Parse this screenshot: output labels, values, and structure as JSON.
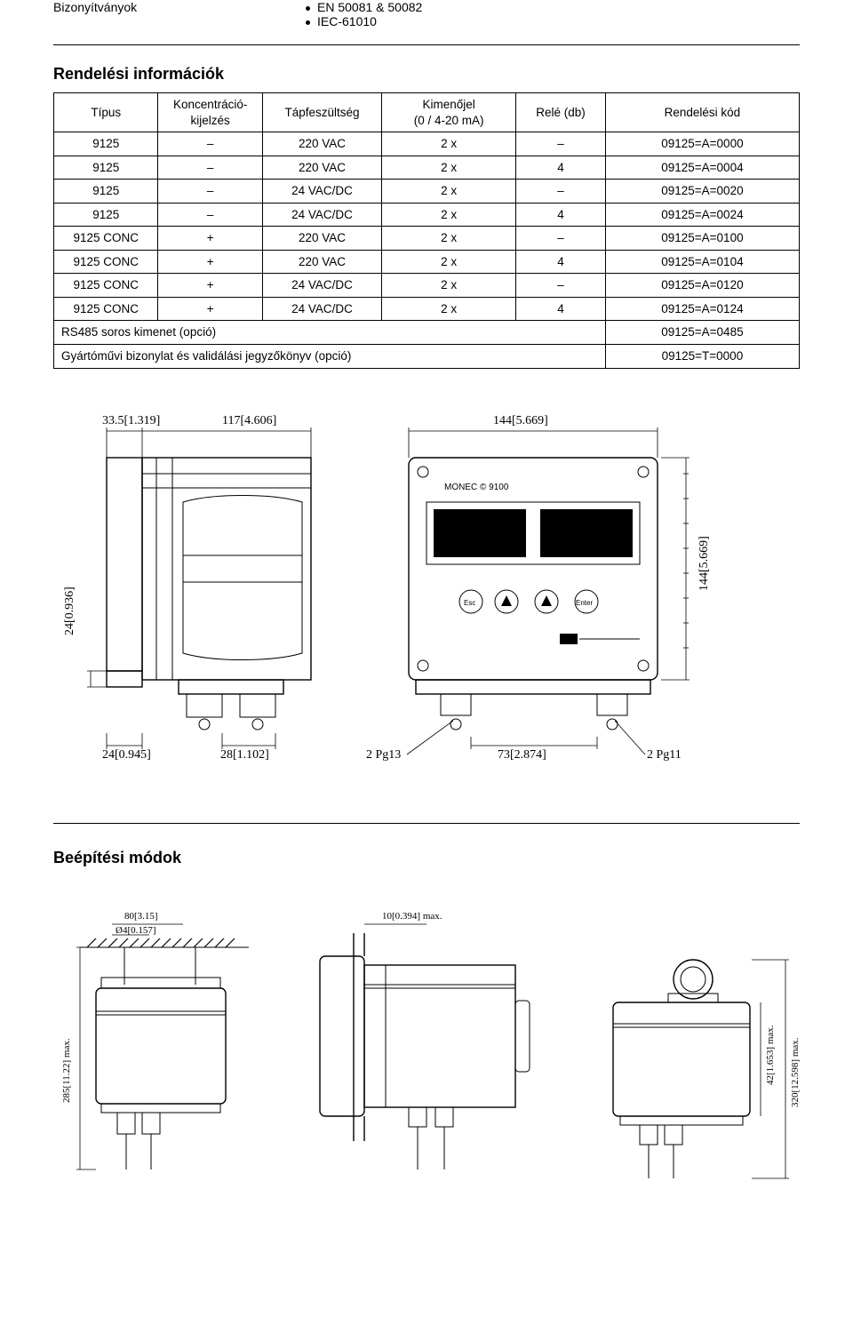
{
  "top": {
    "left_label": "Bizonyítványok",
    "bullets": [
      "EN 50081 & 50082",
      "IEC-61010"
    ]
  },
  "section1_title": "Rendelési információk",
  "table": {
    "headers": {
      "type": "Típus",
      "conc": "Koncentráció-kijelzés",
      "power": "Tápfeszültség",
      "output_line1": "Kimenőjel",
      "output_line2": "(0 / 4-20 mA)",
      "relay": "Relé (db)",
      "code": "Rendelési kód"
    },
    "rows": [
      {
        "type": "9125",
        "conc": "–",
        "power": "220 VAC",
        "out": "2 x",
        "relay": "–",
        "code": "09125=A=0000"
      },
      {
        "type": "9125",
        "conc": "–",
        "power": "220 VAC",
        "out": "2 x",
        "relay": "4",
        "code": "09125=A=0004"
      },
      {
        "type": "9125",
        "conc": "–",
        "power": "24 VAC/DC",
        "out": "2 x",
        "relay": "–",
        "code": "09125=A=0020"
      },
      {
        "type": "9125",
        "conc": "–",
        "power": "24 VAC/DC",
        "out": "2 x",
        "relay": "4",
        "code": "09125=A=0024"
      },
      {
        "type": "9125 CONC",
        "conc": "+",
        "power": "220 VAC",
        "out": "2 x",
        "relay": "–",
        "code": "09125=A=0100"
      },
      {
        "type": "9125 CONC",
        "conc": "+",
        "power": "220 VAC",
        "out": "2 x",
        "relay": "4",
        "code": "09125=A=0104"
      },
      {
        "type": "9125 CONC",
        "conc": "+",
        "power": "24 VAC/DC",
        "out": "2 x",
        "relay": "–",
        "code": "09125=A=0120"
      },
      {
        "type": "9125 CONC",
        "conc": "+",
        "power": "24 VAC/DC",
        "out": "2 x",
        "relay": "4",
        "code": "09125=A=0124"
      }
    ],
    "foot1_label": "RS485 soros kimenet (opció)",
    "foot1_code": "09125=A=0485",
    "foot2_label": "Gyártóművi bizonylat és validálási jegyzőkönyv (opció)",
    "foot2_code": "09125=T=0000"
  },
  "dim_main": {
    "d33": "33.5[1.319]",
    "d117": "117[4.606]",
    "d144": "144[5.669]",
    "d144v": "144[5.669]",
    "d24v": "24[0.936]",
    "d24b": "24[0.945]",
    "d28b": "28[1.102]",
    "pg13": "2 Pg13",
    "d73b": "73[2.874]",
    "pg11": "2 Pg11",
    "device_label": "MONEC © 9100",
    "btn_esc": "Esc",
    "btn_enter": "Enter"
  },
  "section2_title": "Beépítési módok",
  "mount": {
    "m80": "80[3.15]",
    "m04": "Ø4[0.157]",
    "m10": "10[0.394] max.",
    "m285": "285[11.22] max.",
    "m42": "42[1.653] max.",
    "m320": "320[12.598] max."
  },
  "colors": {
    "text": "#000000",
    "bg": "#ffffff",
    "rule": "#000000"
  }
}
